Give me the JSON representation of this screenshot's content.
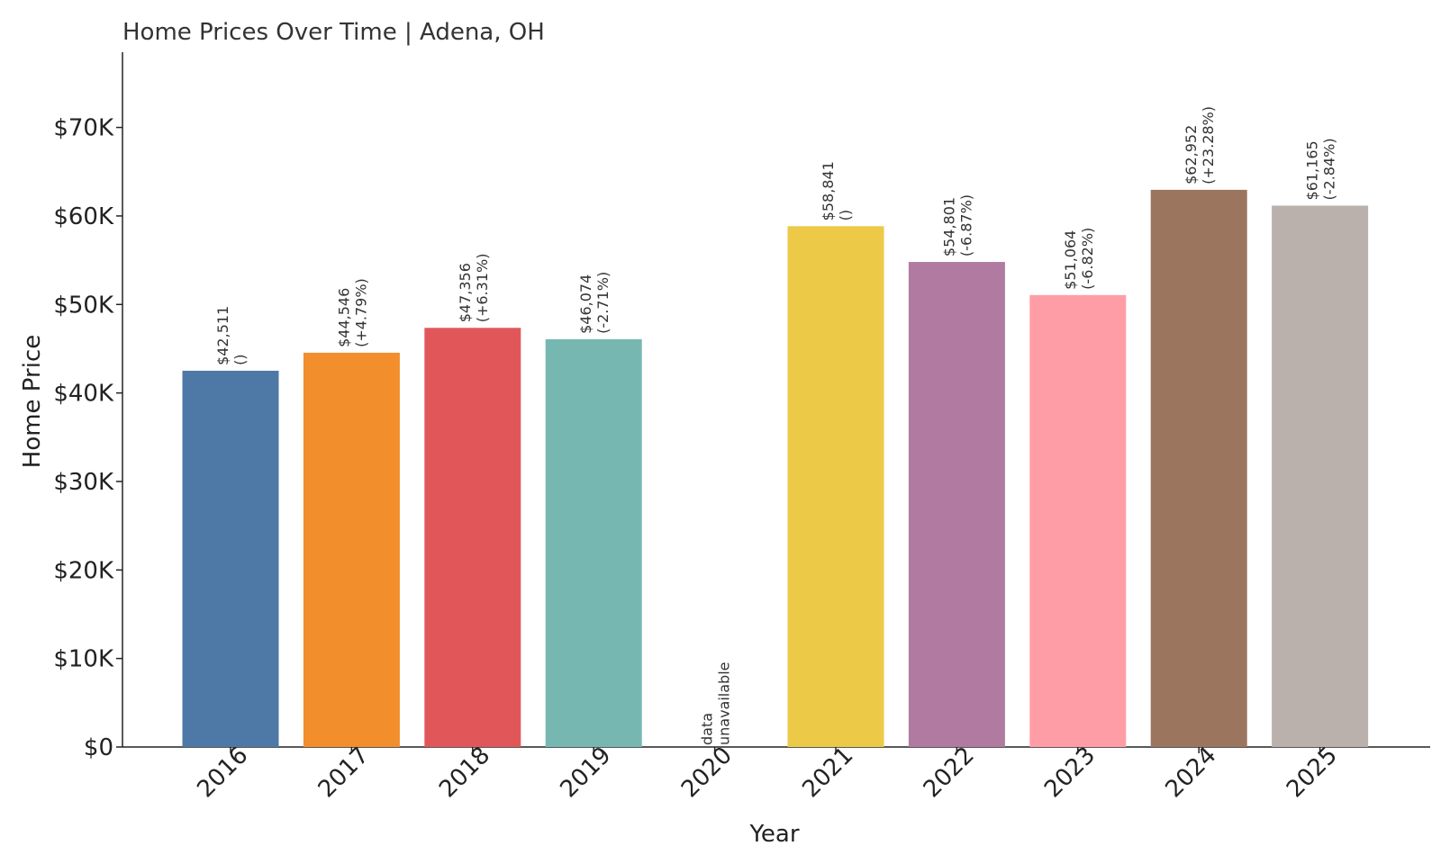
{
  "chart_data": {
    "type": "bar",
    "title": "Home Prices Over Time | Adena, OH",
    "xlabel": "Year",
    "ylabel": "Home Price",
    "ylim": [
      0,
      78500
    ],
    "yticks": [
      0,
      10000,
      20000,
      30000,
      40000,
      50000,
      60000,
      70000
    ],
    "ytick_labels": [
      "$0",
      "$10K",
      "$20K",
      "$30K",
      "$40K",
      "$50K",
      "$60K",
      "$70K"
    ],
    "categories": [
      "2016",
      "2017",
      "2018",
      "2019",
      "2020",
      "2021",
      "2022",
      "2023",
      "2024",
      "2025"
    ],
    "values": [
      42511,
      44546,
      47356,
      46074,
      null,
      58841,
      54801,
      51064,
      62952,
      61165
    ],
    "labels": [
      [
        "$42,511",
        "()"
      ],
      [
        "$44,546",
        "(+4.79%)"
      ],
      [
        "$47,356",
        "(+6.31%)"
      ],
      [
        "$46,074",
        "(-2.71%)"
      ],
      [
        "data",
        "unavailable"
      ],
      [
        "$58,841",
        "()"
      ],
      [
        "$54,801",
        "(-6.87%)"
      ],
      [
        "$51,064",
        "(-6.82%)"
      ],
      [
        "$62,952",
        "(+23.28%)"
      ],
      [
        "$61,165",
        "(-2.84%)"
      ]
    ],
    "colors": [
      "#4e79a7",
      "#f28e2b",
      "#e15759",
      "#76b7b2",
      "#ffffff",
      "#edc948",
      "#b07aa1",
      "#ff9da7",
      "#9c755f",
      "#bab0ac"
    ],
    "grid": false,
    "legend": "none"
  }
}
